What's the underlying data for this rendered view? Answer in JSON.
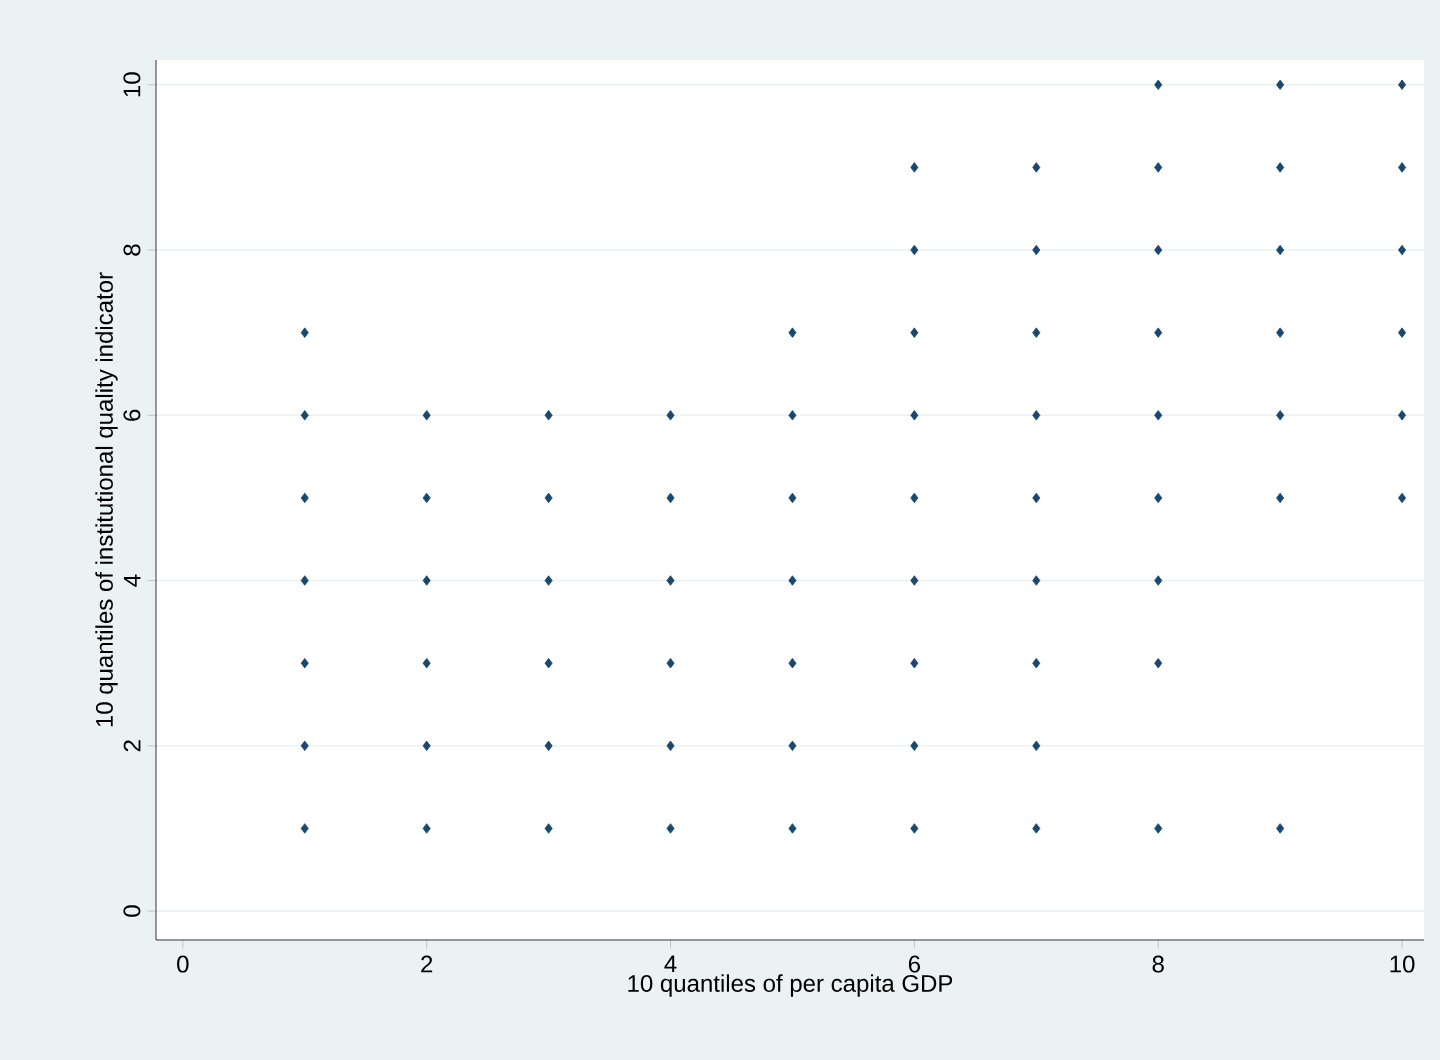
{
  "chart_data": {
    "type": "scatter",
    "xlabel": "10 quantiles of per capita GDP",
    "ylabel": "10 quantiles of institutional quality indicator",
    "xlim": [
      -0.22,
      10.18
    ],
    "ylim": [
      -0.35,
      10.3
    ],
    "xticks": [
      0,
      2,
      4,
      6,
      8,
      10
    ],
    "yticks": [
      0,
      2,
      4,
      6,
      8,
      10
    ],
    "grid": "y",
    "marker": "diamond",
    "series": [
      {
        "color": "#1a476f",
        "x": [
          1,
          1,
          1,
          1,
          1,
          1,
          1,
          2,
          2,
          2,
          2,
          2,
          2,
          3,
          3,
          3,
          3,
          3,
          3,
          4,
          4,
          4,
          4,
          4,
          4,
          5,
          5,
          5,
          5,
          5,
          5,
          5,
          6,
          6,
          6,
          6,
          6,
          6,
          6,
          6,
          6,
          7,
          7,
          7,
          7,
          7,
          7,
          7,
          7,
          7,
          8,
          8,
          8,
          8,
          8,
          8,
          8,
          8,
          8,
          9,
          9,
          9,
          9,
          9,
          9,
          9,
          10,
          10,
          10,
          10,
          10,
          10
        ],
        "values": [
          1,
          2,
          3,
          4,
          5,
          6,
          7,
          1,
          2,
          3,
          4,
          5,
          6,
          1,
          2,
          3,
          4,
          5,
          6,
          1,
          2,
          3,
          4,
          5,
          6,
          1,
          2,
          3,
          4,
          5,
          6,
          7,
          1,
          2,
          3,
          4,
          5,
          6,
          7,
          8,
          9,
          1,
          2,
          3,
          4,
          5,
          6,
          7,
          8,
          9,
          1,
          3,
          4,
          5,
          6,
          7,
          8,
          9,
          10,
          1,
          5,
          6,
          7,
          8,
          9,
          10,
          5,
          6,
          7,
          8,
          9,
          10
        ]
      }
    ]
  }
}
